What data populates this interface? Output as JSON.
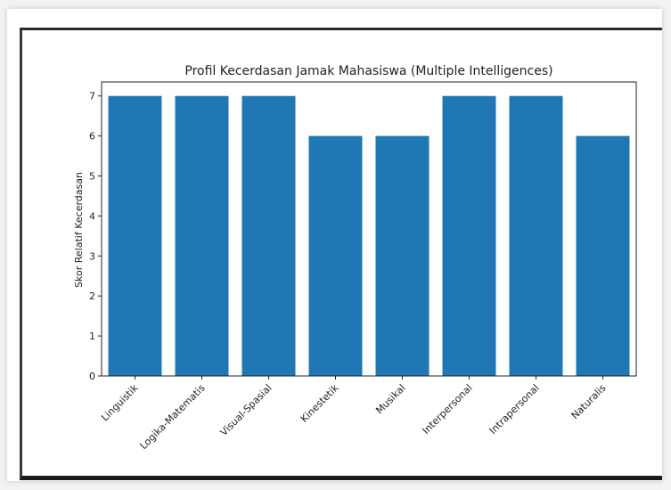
{
  "chart_data": {
    "type": "bar",
    "title": "Profil Kecerdasan Jamak Mahasiswa (Multiple Intelligences)",
    "xlabel": "",
    "ylabel": "Skor Relatif Kecerdasan",
    "categories": [
      "Linguistik",
      "Logika-Matematis",
      "Visual-Spasial",
      "Kinestetik",
      "Musikal",
      "Interpersonal",
      "Intrapersonal",
      "Naturalis"
    ],
    "values": [
      7,
      7,
      7,
      6,
      6,
      7,
      7,
      6
    ],
    "ylim": [
      0,
      7.35
    ],
    "yticks": [
      0,
      1,
      2,
      3,
      4,
      5,
      6,
      7
    ],
    "bar_color": "#1f77b4",
    "grid": false,
    "legend": "none"
  }
}
